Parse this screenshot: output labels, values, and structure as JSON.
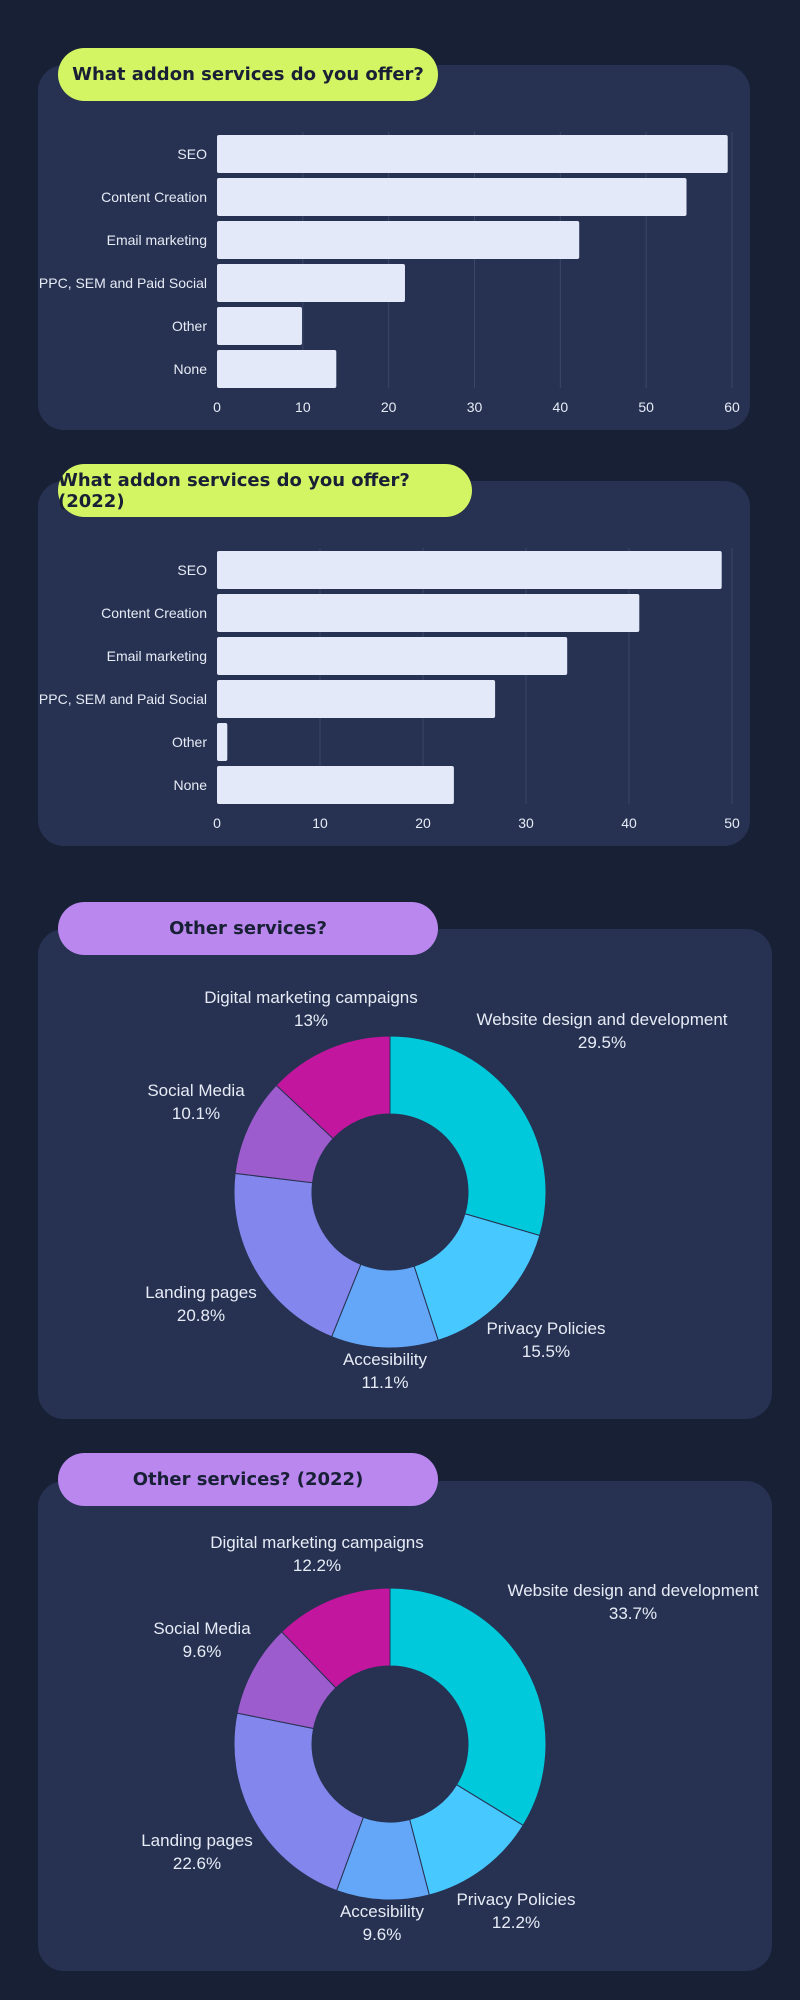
{
  "chart_data": [
    {
      "type": "bar",
      "orientation": "horizontal",
      "title": "What addon services do you offer?",
      "categories": [
        "SEO",
        "Content Creation",
        "Email marketing",
        "PPC, SEM and Paid Social",
        "Other",
        "None"
      ],
      "values": [
        59.5,
        54.7,
        42.2,
        21.9,
        9.9,
        13.9
      ],
      "xlim": [
        0,
        60
      ],
      "ticks": [
        0,
        10,
        20,
        30,
        40,
        50,
        60
      ],
      "grid": true,
      "colors": {
        "bar": "#e3e9f9",
        "grid": "#3b4767",
        "title_bg": "#d4f563"
      }
    },
    {
      "type": "bar",
      "orientation": "horizontal",
      "title": "What addon services do you offer? (2022)",
      "categories": [
        "SEO",
        "Content Creation",
        "Email marketing",
        "PPC, SEM and Paid Social",
        "Other",
        "None"
      ],
      "values": [
        49,
        41,
        34,
        27,
        1,
        23
      ],
      "xlim": [
        0,
        50
      ],
      "ticks": [
        0,
        10,
        20,
        30,
        40,
        50
      ],
      "grid": true,
      "colors": {
        "bar": "#e3e9f9",
        "grid": "#3b4767",
        "title_bg": "#d4f563"
      }
    },
    {
      "type": "pie",
      "donut": true,
      "title": "Other services?",
      "slices": [
        {
          "label": "Website design and development",
          "value": 29.5,
          "display": "29.5%",
          "color": "#00c9dc"
        },
        {
          "label": "Privacy Policies",
          "value": 15.5,
          "display": "15.5%",
          "color": "#47c8ff"
        },
        {
          "label": "Accesibility",
          "value": 11.1,
          "display": "11.1%",
          "color": "#64a7f8"
        },
        {
          "label": "Landing pages",
          "value": 20.8,
          "display": "20.8%",
          "color": "#8386ec"
        },
        {
          "label": "Social Media",
          "value": 10.1,
          "display": "10.1%",
          "color": "#9d5ccd"
        },
        {
          "label": "Digital marketing campaigns",
          "value": 13,
          "display": "13%",
          "color": "#c2169e"
        }
      ],
      "colors": {
        "title_bg": "#b987ee"
      }
    },
    {
      "type": "pie",
      "donut": true,
      "title": "Other services? (2022)",
      "slices": [
        {
          "label": "Website design and development",
          "value": 33.7,
          "display": "33.7%",
          "color": "#00c9dc"
        },
        {
          "label": "Privacy Policies",
          "value": 12.2,
          "display": "12.2%",
          "color": "#47c8ff"
        },
        {
          "label": "Accesibility",
          "value": 9.6,
          "display": "9.6%",
          "color": "#64a7f8"
        },
        {
          "label": "Landing pages",
          "value": 22.6,
          "display": "22.6%",
          "color": "#8386ec"
        },
        {
          "label": "Social Media",
          "value": 9.6,
          "display": "9.6%",
          "color": "#9d5ccd"
        },
        {
          "label": "Digital marketing campaigns",
          "value": 12.2,
          "display": "12.2%",
          "color": "#c2169e"
        }
      ],
      "colors": {
        "title_bg": "#b987ee"
      }
    }
  ]
}
